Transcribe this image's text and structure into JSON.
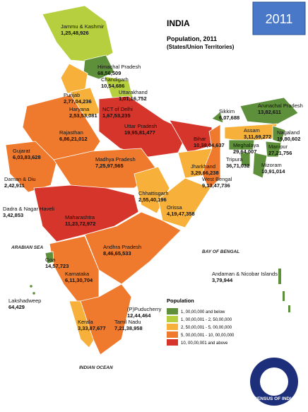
{
  "header": {
    "title": "INDIA",
    "subtitle": "Population, 2011",
    "note": "(States/Union Territories)",
    "badge": "2011"
  },
  "regions": [
    {
      "name": "Jammu & Kashmir",
      "population": "1,25,48,926"
    },
    {
      "name": "Himachal Pradesh",
      "population": "68,56,509"
    },
    {
      "name": "Punjab",
      "population": "2,77,04,236"
    },
    {
      "name": "Chandigarh",
      "population": "10,54,686"
    },
    {
      "name": "Uttarakhand",
      "population": "1,01,16,752"
    },
    {
      "name": "Haryana",
      "population": "2,53,53,081"
    },
    {
      "name": "NCT of Delhi",
      "population": "1,67,53,235"
    },
    {
      "name": "Rajasthan",
      "population": "6,86,21,012"
    },
    {
      "name": "Uttar Pradesh",
      "population": "19,95,81,477"
    },
    {
      "name": "Bihar",
      "population": "10,38,04,637"
    },
    {
      "name": "Sikkim",
      "population": "6,07,688"
    },
    {
      "name": "Arunachal Pradesh",
      "population": "13,82,611"
    },
    {
      "name": "Assam",
      "population": "3,11,69,272"
    },
    {
      "name": "Nagaland",
      "population": "19,80,602"
    },
    {
      "name": "Meghalaya",
      "population": "29,64,007"
    },
    {
      "name": "Manipur",
      "population": "27,21,756"
    },
    {
      "name": "Tripura",
      "population": "36,71,032"
    },
    {
      "name": "Mizoram",
      "population": "10,91,014"
    },
    {
      "name": "Gujarat",
      "population": "6,03,83,628"
    },
    {
      "name": "Madhya Pradesh",
      "population": "7,25,97,565"
    },
    {
      "name": "Jharkhand",
      "population": "3,29,66,238"
    },
    {
      "name": "West Bengal",
      "population": "9,13,47,736"
    },
    {
      "name": "Daman & Diu",
      "population": "2,42,911"
    },
    {
      "name": "Dadra & Nagar Haveli",
      "population": "3,42,853"
    },
    {
      "name": "Chhattisgarh",
      "population": "2,55,40,196"
    },
    {
      "name": "Orissa",
      "population": "4,19,47,358"
    },
    {
      "name": "Maharashtra",
      "population": "11,23,72,972"
    },
    {
      "name": "Andhra Pradesh",
      "population": "8,46,65,533"
    },
    {
      "name": "Goa",
      "population": "14,57,723"
    },
    {
      "name": "Karnataka",
      "population": "6,11,30,704"
    },
    {
      "name": "Andaman & Nicobar Islands",
      "population": "3,79,944"
    },
    {
      "name": "Lakshadweep",
      "population": "64,429"
    },
    {
      "name": "Kerala",
      "population": "3,33,87,677"
    },
    {
      "name": "Tamil Nadu",
      "population": "7,21,38,958"
    },
    {
      "name": "(P)Puducherry",
      "population": "12,44,464"
    }
  ],
  "seas": [
    "ARABIAN SEA",
    "BAY OF BENGAL",
    "INDIAN OCEAN"
  ],
  "legend": {
    "title": "Population",
    "items": [
      {
        "label": "1, 00,00,000 and below",
        "color": "#5e8f3a"
      },
      {
        "label": "1, 00,00,001 - 2, 50,00,000",
        "color": "#b5cf3f"
      },
      {
        "label": "2, 50,00,001 - 5, 00,00,000",
        "color": "#f7b13a"
      },
      {
        "label": "5, 00,00,001 - 10, 00,00,000",
        "color": "#ef7a2d"
      },
      {
        "label": "10, 00,00,001 and above",
        "color": "#d6352b"
      }
    ]
  },
  "logo": {
    "text": "CENSUS OF INDIA"
  }
}
